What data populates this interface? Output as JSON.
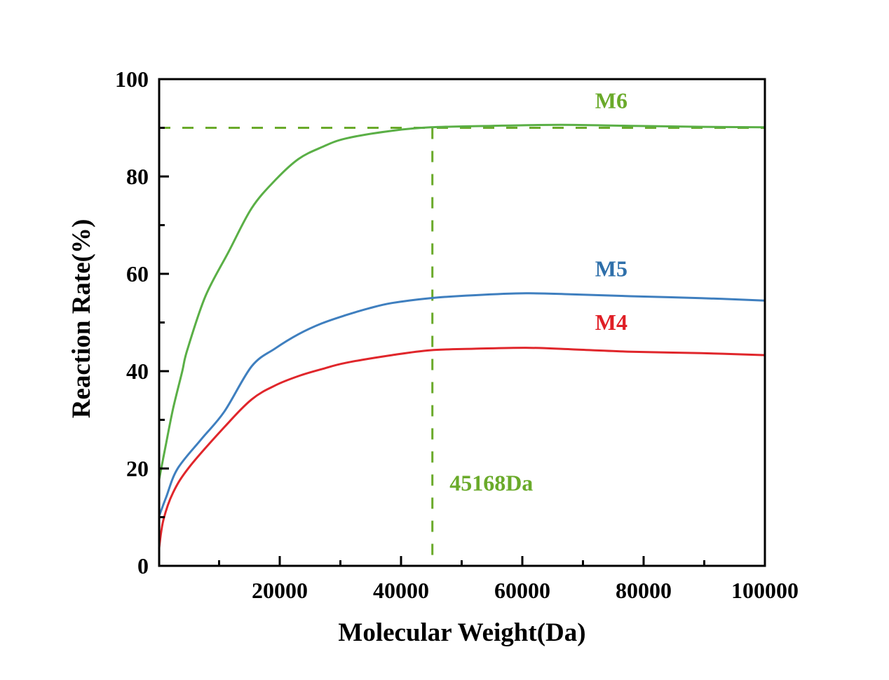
{
  "chart_data": {
    "type": "line",
    "title": "",
    "xlabel": "Molecular Weight(Da)",
    "ylabel": "Reaction Rate(%)",
    "xlim": [
      0,
      100000
    ],
    "ylim": [
      0,
      100
    ],
    "grid": false,
    "x_ticks": [
      20000,
      40000,
      60000,
      80000,
      100000
    ],
    "x_tick_labels": [
      "20000",
      "40000",
      "60000",
      "80000",
      "100000"
    ],
    "x_minor_ticks": [
      10000,
      30000,
      50000,
      70000,
      90000
    ],
    "y_ticks": [
      0,
      20,
      40,
      60,
      80,
      100
    ],
    "y_tick_labels": [
      "0",
      "20",
      "40",
      "60",
      "80",
      "100"
    ],
    "y_minor_ticks": [
      10,
      30,
      50,
      70,
      90
    ],
    "series": [
      {
        "name": "M6",
        "color": "#5aaf46",
        "label_color": "#6aaa2a",
        "label_pos": [
          72000,
          94
        ],
        "points": [
          [
            100,
            17.7
          ],
          [
            1270,
            25.2
          ],
          [
            2430,
            32.4
          ],
          [
            3930,
            40.0
          ],
          [
            4740,
            44.3
          ],
          [
            7750,
            55.4
          ],
          [
            11560,
            64.5
          ],
          [
            15380,
            73.5
          ],
          [
            19300,
            79.3
          ],
          [
            23100,
            83.6
          ],
          [
            26900,
            86.0
          ],
          [
            30870,
            87.8
          ],
          [
            38500,
            89.4
          ],
          [
            44860,
            90.1
          ],
          [
            55000,
            90.4
          ],
          [
            66400,
            90.6
          ],
          [
            78000,
            90.4
          ],
          [
            89500,
            90.2
          ],
          [
            100000,
            90.1
          ]
        ]
      },
      {
        "name": "M5",
        "color": "#3f7fbf",
        "label_color": "#2e6faa",
        "label_pos": [
          72000,
          59.5
        ],
        "points": [
          [
            100,
            10.2
          ],
          [
            1270,
            14.1
          ],
          [
            3120,
            19.9
          ],
          [
            7050,
            26.0
          ],
          [
            10870,
            31.7
          ],
          [
            15380,
            41.0
          ],
          [
            19300,
            44.7
          ],
          [
            23100,
            47.6
          ],
          [
            26900,
            49.8
          ],
          [
            30870,
            51.5
          ],
          [
            34700,
            52.9
          ],
          [
            38500,
            54.0
          ],
          [
            44860,
            55.0
          ],
          [
            52000,
            55.6
          ],
          [
            60600,
            56.0
          ],
          [
            68000,
            55.8
          ],
          [
            77900,
            55.4
          ],
          [
            89500,
            55.0
          ],
          [
            100000,
            54.5
          ]
        ]
      },
      {
        "name": "M4",
        "color": "#e0262b",
        "label_color": "#e01f26",
        "label_pos": [
          72000,
          48.5
        ],
        "points": [
          [
            100,
            3.6
          ],
          [
            810,
            9.4
          ],
          [
            2430,
            15.1
          ],
          [
            5090,
            20.3
          ],
          [
            10870,
            28.5
          ],
          [
            15380,
            34.2
          ],
          [
            19300,
            37.1
          ],
          [
            23100,
            39.0
          ],
          [
            26900,
            40.4
          ],
          [
            30870,
            41.7
          ],
          [
            38500,
            43.3
          ],
          [
            44860,
            44.3
          ],
          [
            52000,
            44.6
          ],
          [
            60600,
            44.8
          ],
          [
            68000,
            44.5
          ],
          [
            77900,
            44.0
          ],
          [
            89500,
            43.7
          ],
          [
            100000,
            43.3
          ]
        ]
      }
    ],
    "reference_lines": {
      "color": "#6aaa2a",
      "horizontal_y": 90,
      "vertical_x": 45168
    },
    "annotations": [
      {
        "text": "45168Da",
        "x": 48000,
        "y": 15.5,
        "color": "#6aaa2a"
      }
    ]
  }
}
